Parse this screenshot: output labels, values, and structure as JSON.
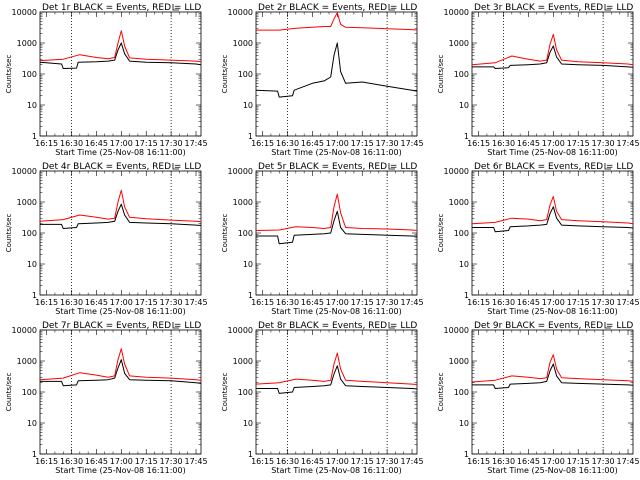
{
  "chart_data": [
    {
      "type": "line",
      "title": "Det 1r BLACK = Events, RED = LLD",
      "xlabel": "Start Time (25-Nov-08 16:11:00)",
      "ylabel": "Counts/sec",
      "x_tick_labels": [
        "16:15",
        "16:30",
        "16:45",
        "17:00",
        "17:15",
        "17:30",
        "17:45"
      ],
      "y_tick_labels": [
        "1",
        "10",
        "100",
        "1000",
        "10000"
      ],
      "ylim": [
        1,
        10000
      ],
      "y_scale": "log",
      "vlines": [
        "16:30",
        "17:30"
      ],
      "series": [
        {
          "color": "#000000",
          "x": [
            "16:11",
            "16:24",
            "16:25",
            "16:33",
            "16:34",
            "16:45",
            "16:52",
            "16:56",
            "16:58",
            "17:00",
            "17:02",
            "17:05",
            "17:15",
            "17:30",
            "17:45",
            "17:48"
          ],
          "y": [
            240,
            210,
            150,
            155,
            240,
            250,
            260,
            280,
            600,
            1000,
            450,
            260,
            240,
            230,
            210,
            200
          ]
        },
        {
          "color": "#ff0000",
          "x": [
            "16:11",
            "16:25",
            "16:35",
            "16:45",
            "16:52",
            "16:56",
            "16:58",
            "17:00",
            "17:02",
            "17:05",
            "17:15",
            "17:30",
            "17:45",
            "17:48"
          ],
          "y": [
            270,
            300,
            420,
            340,
            310,
            340,
            1000,
            2500,
            800,
            330,
            300,
            280,
            260,
            250
          ]
        }
      ]
    },
    {
      "type": "line",
      "title": "Det 2r BLACK = Events, RED = LLD",
      "xlabel": "Start Time (25-Nov-08 16:11:00)",
      "ylabel": "Counts/sec",
      "x_tick_labels": [
        "16:15",
        "16:30",
        "16:45",
        "17:00",
        "17:15",
        "17:30",
        "17:45"
      ],
      "y_tick_labels": [
        "1",
        "10",
        "100",
        "1000",
        "10000"
      ],
      "ylim": [
        1,
        10000
      ],
      "y_scale": "log",
      "vlines": [
        "16:30",
        "17:30"
      ],
      "series": [
        {
          "color": "#000000",
          "x": [
            "16:11",
            "16:24",
            "16:25",
            "16:33",
            "16:34",
            "16:45",
            "16:52",
            "16:56",
            "16:58",
            "17:00",
            "17:02",
            "17:05",
            "17:15",
            "17:30",
            "17:45",
            "17:48"
          ],
          "y": [
            30,
            28,
            18,
            20,
            30,
            50,
            60,
            80,
            400,
            1000,
            120,
            50,
            55,
            40,
            30,
            28
          ]
        },
        {
          "color": "#ff0000",
          "x": [
            "16:11",
            "16:25",
            "16:35",
            "16:45",
            "16:52",
            "16:56",
            "16:58",
            "17:00",
            "17:02",
            "17:05",
            "17:15",
            "17:30",
            "17:45",
            "17:48"
          ],
          "y": [
            2600,
            2600,
            3000,
            3200,
            3400,
            3400,
            6000,
            9500,
            4000,
            3200,
            3100,
            2900,
            2700,
            2600
          ]
        }
      ]
    },
    {
      "type": "line",
      "title": "Det 3r BLACK = Events, RED = LLD",
      "xlabel": "Start Time (25-Nov-08 16:11:00)",
      "ylabel": "Counts/sec",
      "x_tick_labels": [
        "16:15",
        "16:30",
        "16:45",
        "17:00",
        "17:15",
        "17:30",
        "17:45"
      ],
      "y_tick_labels": [
        "1",
        "10",
        "100",
        "1000",
        "10000"
      ],
      "ylim": [
        1,
        10000
      ],
      "y_scale": "log",
      "vlines": [
        "16:30",
        "17:30"
      ],
      "series": [
        {
          "color": "#000000",
          "x": [
            "16:11",
            "16:24",
            "16:25",
            "16:33",
            "16:34",
            "16:45",
            "16:52",
            "16:56",
            "16:58",
            "17:00",
            "17:02",
            "17:05",
            "17:15",
            "17:30",
            "17:45",
            "17:48"
          ],
          "y": [
            170,
            170,
            150,
            160,
            190,
            200,
            210,
            230,
            500,
            800,
            350,
            210,
            200,
            190,
            170,
            165
          ]
        },
        {
          "color": "#ff0000",
          "x": [
            "16:11",
            "16:25",
            "16:35",
            "16:45",
            "16:52",
            "16:56",
            "16:58",
            "17:00",
            "17:02",
            "17:05",
            "17:15",
            "17:30",
            "17:45",
            "17:48"
          ],
          "y": [
            200,
            230,
            380,
            300,
            260,
            280,
            900,
            1900,
            600,
            280,
            250,
            230,
            210,
            200
          ]
        }
      ]
    },
    {
      "type": "line",
      "title": "Det 4r BLACK = Events, RED = LLD",
      "xlabel": "Start Time (25-Nov-08 16:11:00)",
      "ylabel": "Counts/sec",
      "x_tick_labels": [
        "16:15",
        "16:30",
        "16:45",
        "17:00",
        "17:15",
        "17:30",
        "17:45"
      ],
      "y_tick_labels": [
        "1",
        "10",
        "100",
        "1000",
        "10000"
      ],
      "ylim": [
        1,
        10000
      ],
      "y_scale": "log",
      "vlines": [
        "16:30",
        "17:30"
      ],
      "series": [
        {
          "color": "#000000",
          "x": [
            "16:11",
            "16:24",
            "16:25",
            "16:33",
            "16:34",
            "16:45",
            "16:52",
            "16:56",
            "16:58",
            "17:00",
            "17:02",
            "17:05",
            "17:15",
            "17:30",
            "17:45",
            "17:48"
          ],
          "y": [
            190,
            190,
            140,
            150,
            200,
            210,
            220,
            240,
            500,
            850,
            380,
            220,
            210,
            200,
            180,
            175
          ]
        },
        {
          "color": "#ff0000",
          "x": [
            "16:11",
            "16:25",
            "16:35",
            "16:45",
            "16:52",
            "16:56",
            "16:58",
            "17:00",
            "17:02",
            "17:05",
            "17:15",
            "17:30",
            "17:45",
            "17:48"
          ],
          "y": [
            240,
            270,
            380,
            320,
            280,
            300,
            1000,
            2400,
            700,
            320,
            290,
            260,
            240,
            230
          ]
        }
      ]
    },
    {
      "type": "line",
      "title": "Det 5r BLACK = Events, RED = LLD",
      "xlabel": "Start Time (25-Nov-08 16:11:00)",
      "ylabel": "Counts/sec",
      "x_tick_labels": [
        "16:15",
        "16:30",
        "16:45",
        "17:00",
        "17:15",
        "17:30",
        "17:45"
      ],
      "y_tick_labels": [
        "1",
        "10",
        "100",
        "1000",
        "10000"
      ],
      "ylim": [
        1,
        10000
      ],
      "y_scale": "log",
      "vlines": [
        "16:30",
        "17:30"
      ],
      "series": [
        {
          "color": "#000000",
          "x": [
            "16:11",
            "16:24",
            "16:25",
            "16:33",
            "16:34",
            "16:45",
            "16:52",
            "16:56",
            "16:58",
            "17:00",
            "17:02",
            "17:05",
            "17:15",
            "17:30",
            "17:45",
            "17:48"
          ],
          "y": [
            80,
            80,
            45,
            50,
            85,
            90,
            95,
            100,
            250,
            500,
            150,
            95,
            90,
            85,
            80,
            78
          ]
        },
        {
          "color": "#ff0000",
          "x": [
            "16:11",
            "16:25",
            "16:35",
            "16:45",
            "16:52",
            "16:56",
            "16:58",
            "17:00",
            "17:02",
            "17:05",
            "17:15",
            "17:30",
            "17:45",
            "17:48"
          ],
          "y": [
            120,
            125,
            160,
            150,
            140,
            150,
            700,
            1800,
            450,
            150,
            140,
            135,
            125,
            120
          ]
        }
      ]
    },
    {
      "type": "line",
      "title": "Det 6r BLACK = Events, RED = LLD",
      "xlabel": "Start Time (25-Nov-08 16:11:00)",
      "ylabel": "Counts/sec",
      "x_tick_labels": [
        "16:15",
        "16:30",
        "16:45",
        "17:00",
        "17:15",
        "17:30",
        "17:45"
      ],
      "y_tick_labels": [
        "1",
        "10",
        "100",
        "1000",
        "10000"
      ],
      "ylim": [
        1,
        10000
      ],
      "y_scale": "log",
      "vlines": [
        "16:30",
        "17:30"
      ],
      "series": [
        {
          "color": "#000000",
          "x": [
            "16:11",
            "16:24",
            "16:25",
            "16:33",
            "16:34",
            "16:45",
            "16:52",
            "16:56",
            "16:58",
            "17:00",
            "17:02",
            "17:05",
            "17:15",
            "17:30",
            "17:45",
            "17:48"
          ],
          "y": [
            150,
            150,
            110,
            120,
            160,
            170,
            180,
            190,
            420,
            700,
            300,
            180,
            170,
            160,
            150,
            145
          ]
        },
        {
          "color": "#ff0000",
          "x": [
            "16:11",
            "16:25",
            "16:35",
            "16:45",
            "16:52",
            "16:56",
            "16:58",
            "17:00",
            "17:02",
            "17:05",
            "17:15",
            "17:30",
            "17:45",
            "17:48"
          ],
          "y": [
            200,
            220,
            300,
            280,
            250,
            270,
            800,
            1500,
            500,
            270,
            250,
            230,
            210,
            200
          ]
        }
      ]
    },
    {
      "type": "line",
      "title": "Det 7r BLACK = Events, RED = LLD",
      "xlabel": "Start Time (25-Nov-08 16:11:00)",
      "ylabel": "Counts/sec",
      "x_tick_labels": [
        "16:15",
        "16:30",
        "16:45",
        "17:00",
        "17:15",
        "17:30",
        "17:45"
      ],
      "y_tick_labels": [
        "1",
        "10",
        "100",
        "1000",
        "10000"
      ],
      "ylim": [
        1,
        10000
      ],
      "y_scale": "log",
      "vlines": [
        "16:30",
        "17:30"
      ],
      "series": [
        {
          "color": "#000000",
          "x": [
            "16:11",
            "16:24",
            "16:25",
            "16:33",
            "16:34",
            "16:45",
            "16:52",
            "16:56",
            "16:58",
            "17:00",
            "17:02",
            "17:05",
            "17:15",
            "17:30",
            "17:45",
            "17:48"
          ],
          "y": [
            220,
            220,
            160,
            170,
            230,
            240,
            250,
            280,
            600,
            1100,
            400,
            250,
            240,
            230,
            200,
            190
          ]
        },
        {
          "color": "#ff0000",
          "x": [
            "16:11",
            "16:25",
            "16:35",
            "16:45",
            "16:52",
            "16:56",
            "16:58",
            "17:00",
            "17:02",
            "17:05",
            "17:15",
            "17:30",
            "17:45",
            "17:48"
          ],
          "y": [
            250,
            280,
            420,
            350,
            300,
            330,
            1100,
            2500,
            800,
            330,
            300,
            280,
            250,
            240
          ]
        }
      ]
    },
    {
      "type": "line",
      "title": "Det 8r BLACK = Events, RED = LLD",
      "xlabel": "Start Time (25-Nov-08 16:11:00)",
      "ylabel": "Counts/sec",
      "x_tick_labels": [
        "16:15",
        "16:30",
        "16:45",
        "17:00",
        "17:15",
        "17:30",
        "17:45"
      ],
      "y_tick_labels": [
        "1",
        "10",
        "100",
        "1000",
        "10000"
      ],
      "ylim": [
        1,
        10000
      ],
      "y_scale": "log",
      "vlines": [
        "16:30",
        "17:30"
      ],
      "series": [
        {
          "color": "#000000",
          "x": [
            "16:11",
            "16:24",
            "16:25",
            "16:33",
            "16:34",
            "16:45",
            "16:52",
            "16:56",
            "16:58",
            "17:00",
            "17:02",
            "17:05",
            "17:15",
            "17:30",
            "17:45",
            "17:48"
          ],
          "y": [
            130,
            130,
            90,
            100,
            140,
            150,
            160,
            170,
            380,
            700,
            260,
            160,
            150,
            140,
            130,
            125
          ]
        },
        {
          "color": "#ff0000",
          "x": [
            "16:11",
            "16:25",
            "16:35",
            "16:45",
            "16:52",
            "16:56",
            "16:58",
            "17:00",
            "17:02",
            "17:05",
            "17:15",
            "17:30",
            "17:45",
            "17:48"
          ],
          "y": [
            180,
            200,
            260,
            240,
            220,
            240,
            800,
            1800,
            550,
            240,
            220,
            200,
            180,
            175
          ]
        }
      ]
    },
    {
      "type": "line",
      "title": "Det 9r BLACK = Events, RED = LLD",
      "xlabel": "Start Time (25-Nov-08 16:11:00)",
      "ylabel": "Counts/sec",
      "x_tick_labels": [
        "16:15",
        "16:30",
        "16:45",
        "17:00",
        "17:15",
        "17:30",
        "17:45"
      ],
      "y_tick_labels": [
        "1",
        "10",
        "100",
        "1000",
        "10000"
      ],
      "ylim": [
        1,
        10000
      ],
      "y_scale": "log",
      "vlines": [
        "16:30",
        "17:30"
      ],
      "series": [
        {
          "color": "#000000",
          "x": [
            "16:11",
            "16:24",
            "16:25",
            "16:33",
            "16:34",
            "16:45",
            "16:52",
            "16:56",
            "16:58",
            "17:00",
            "17:02",
            "17:05",
            "17:15",
            "17:30",
            "17:45",
            "17:48"
          ],
          "y": [
            170,
            170,
            130,
            140,
            180,
            190,
            200,
            220,
            480,
            800,
            330,
            200,
            190,
            180,
            170,
            165
          ]
        },
        {
          "color": "#ff0000",
          "x": [
            "16:11",
            "16:25",
            "16:35",
            "16:45",
            "16:52",
            "16:56",
            "16:58",
            "17:00",
            "17:02",
            "17:05",
            "17:15",
            "17:30",
            "17:45",
            "17:48"
          ],
          "y": [
            210,
            240,
            330,
            300,
            270,
            290,
            900,
            1600,
            550,
            290,
            270,
            250,
            230,
            220
          ]
        }
      ]
    }
  ]
}
